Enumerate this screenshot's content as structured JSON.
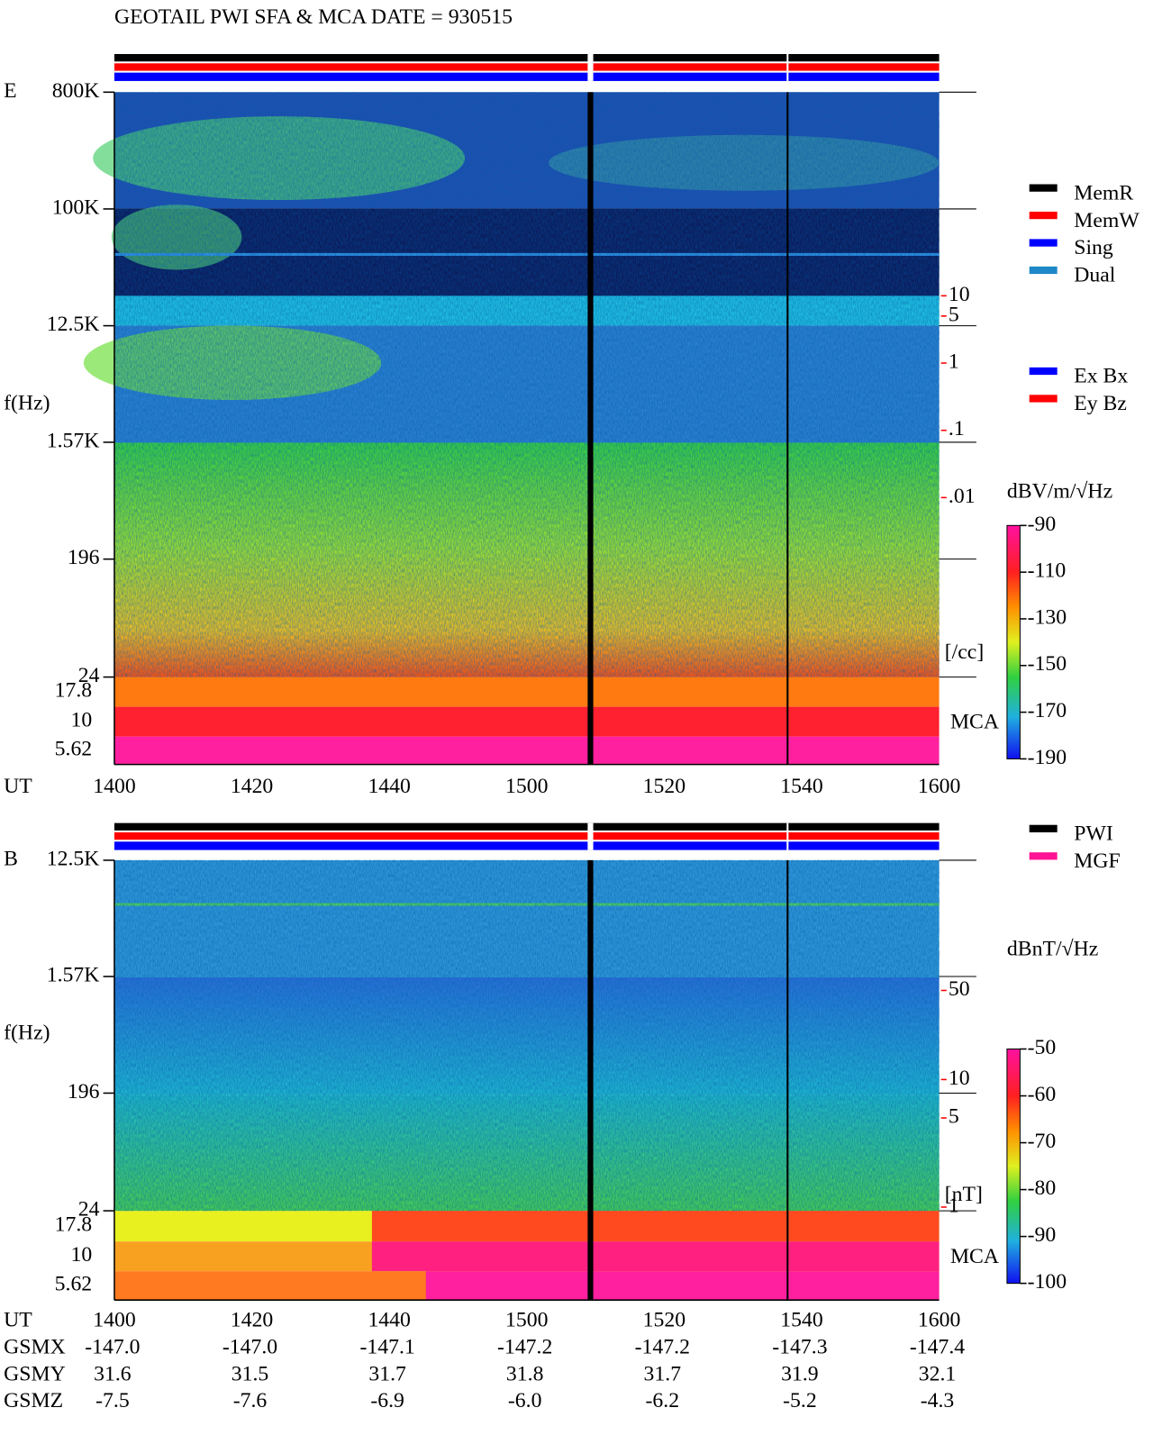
{
  "title": "GEOTAIL  PWI SFA & MCA   DATE = 930515",
  "chart_data": [
    {
      "type": "spectrogram",
      "panel_label": "E",
      "y_label": "f(Hz)",
      "y_log": true,
      "ylim": [
        24,
        800000
      ],
      "yticks": [
        {
          "value": 800000,
          "label": "800K"
        },
        {
          "value": 100000,
          "label": "100K"
        },
        {
          "value": 12500,
          "label": "12.5K"
        },
        {
          "value": 1570,
          "label": "1.57K"
        },
        196,
        24
      ],
      "mca_channels": [
        17.8,
        10,
        5.62
      ],
      "mca_label": "MCA",
      "x_label": "UT",
      "x_ticks": [
        "1400",
        "1420",
        "1440",
        "1500",
        "1520",
        "1540",
        "1600"
      ],
      "density_lim": [
        10,
        0.01
      ],
      "density_ticks": [
        10,
        5,
        1,
        {
          "value": 0.1,
          "label": ".1"
        },
        {
          "value": 0.01,
          "label": ".01"
        }
      ],
      "density_unit": "[/cc]",
      "colorbar_label": "dBV/m/√Hz",
      "clim": [
        -90,
        -190
      ],
      "cticks": [
        -90,
        -110,
        -130,
        -150,
        -170,
        -190
      ],
      "legend": [
        {
          "name": "MemR",
          "color": "#000000"
        },
        {
          "name": "MemW",
          "color": "#ff0000"
        },
        {
          "name": "Sing",
          "color": "#0000ff"
        },
        {
          "name": "Dual",
          "color": "#1e88c8"
        }
      ],
      "legend2": [
        {
          "name": "Ex Bx",
          "color": "#0000ff"
        },
        {
          "name": "Ey Bz",
          "color": "#ff0000"
        }
      ]
    },
    {
      "type": "spectrogram",
      "panel_label": "B",
      "y_label": "f(Hz)",
      "y_log": true,
      "ylim": [
        24,
        12500
      ],
      "yticks": [
        {
          "value": 12500,
          "label": "12.5K"
        },
        {
          "value": 1570,
          "label": "1.57K"
        },
        196,
        24
      ],
      "mca_channels": [
        17.8,
        10,
        5.62
      ],
      "mca_label": "MCA",
      "x_label": "UT",
      "x_ticks": [
        "1400",
        "1420",
        "1440",
        "1500",
        "1520",
        "1540",
        "1600"
      ],
      "density_lim": [
        50,
        1
      ],
      "density_ticks": [
        50,
        10,
        5,
        1
      ],
      "density_unit": "[nT]",
      "colorbar_label": "dBnT/√Hz",
      "clim": [
        -50,
        -100
      ],
      "cticks": [
        -50,
        -60,
        -70,
        -80,
        -90,
        -100
      ],
      "legend": [
        {
          "name": "PWI",
          "color": "#000000"
        },
        {
          "name": "MGF",
          "color": "#ff1493"
        }
      ]
    }
  ],
  "orbit": {
    "rows": [
      {
        "label": "GSMX",
        "values": [
          "-147.0",
          "-147.0",
          "-147.1",
          "-147.2",
          "-147.2",
          "-147.3",
          "-147.4"
        ]
      },
      {
        "label": "GSMY",
        "values": [
          "31.6",
          "31.5",
          "31.7",
          "31.8",
          "31.7",
          "31.9",
          "32.1"
        ]
      },
      {
        "label": "GSMZ",
        "values": [
          "-7.5",
          "-7.6",
          "-6.9",
          "-6.0",
          "-6.2",
          "-5.2",
          "-4.3"
        ]
      }
    ]
  }
}
